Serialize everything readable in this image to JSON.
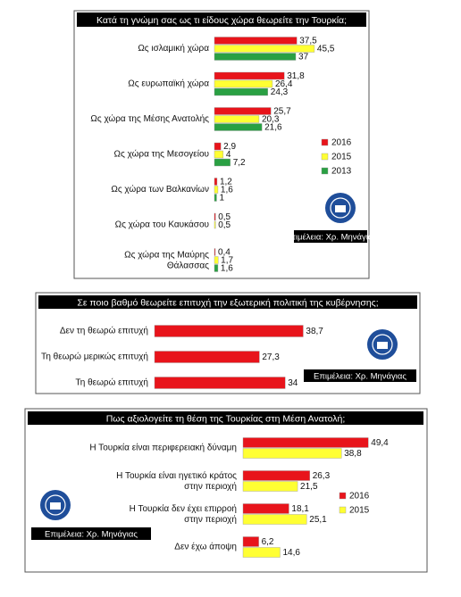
{
  "chart_data": [
    {
      "type": "bar",
      "orientation": "horizontal",
      "title": "Κατά τη γνώμη σας ως τι είδους χώρα θεωρείτε την Τουρκία;",
      "categories": [
        "Ως ισλαμική χώρα",
        "Ως ευρωπαϊκή χώρα",
        "Ως χώρα της Μέσης Ανατολής",
        "Ως χώρα της Μεσογείου",
        "Ως χώρα των Βαλκανίων",
        "Ως χώρα του Καυκάσου",
        "Ως χώρα της Μαύρης\nΘάλασσας"
      ],
      "series": [
        {
          "name": "2016",
          "color": "#e8141b",
          "values": [
            37.5,
            31.8,
            25.7,
            2.9,
            1.2,
            0.5,
            0.4
          ],
          "value_labels": [
            "37,5",
            "31,8",
            "25,7",
            "2,9",
            "1,2",
            "0,5",
            "0,4"
          ]
        },
        {
          "name": "2015",
          "color": "#ffff33",
          "values": [
            45.5,
            26.4,
            20.3,
            4,
            1.6,
            0.5,
            1.7
          ],
          "value_labels": [
            "45,5",
            "26,4",
            "20,3",
            "4",
            "1,6",
            "0,5",
            "1,7"
          ]
        },
        {
          "name": "2013",
          "color": "#2aa043",
          "values": [
            37,
            24.3,
            21.6,
            7.2,
            1,
            null,
            1.6
          ],
          "value_labels": [
            "37",
            "24,3",
            "21,6",
            "7,2",
            "1",
            null,
            "1,6"
          ]
        }
      ],
      "xlim": [
        0,
        50
      ],
      "legend": "right",
      "credit": "Επιμέλεια: Χρ. Μηνάγιας"
    },
    {
      "type": "bar",
      "orientation": "horizontal",
      "title": "Σε ποιο βαθμό θεωρείτε επιτυχή την εξωτερική πολιτική της κυβέρνησης;",
      "categories": [
        "Δεν τη θεωρώ επιτυχή",
        "Τη θεωρώ μερικώς επιτυχή",
        "Τη θεωρώ επιτυχή"
      ],
      "series": [
        {
          "color": "#e8141b",
          "values": [
            38.7,
            27.3,
            34
          ],
          "value_labels": [
            "38,7",
            "27,3",
            "34"
          ]
        }
      ],
      "xlim": [
        0,
        40
      ],
      "credit": "Επιμέλεια: Χρ. Μηνάγιας"
    },
    {
      "type": "bar",
      "orientation": "horizontal",
      "title": "Πως αξιολογείτε τη θέση της Τουρκίας στη Μέση Ανατολή;",
      "categories": [
        "Η Τουρκία είναι περιφερειακή δύναμη",
        "Η Τουρκία είναι ηγετικό κράτος\nστην περιοχή",
        "Η Τουρκία δεν έχει επιρροή\nστην περιοχή",
        "Δεν έχω άποψη"
      ],
      "series": [
        {
          "name": "2016",
          "color": "#e8141b",
          "values": [
            49.4,
            26.3,
            18.1,
            6.2
          ],
          "value_labels": [
            "49,4",
            "26,3",
            "18,1",
            "6,2"
          ]
        },
        {
          "name": "2015",
          "color": "#ffff33",
          "values": [
            38.8,
            21.5,
            25.1,
            14.6
          ],
          "value_labels": [
            "38,8",
            "21,5",
            "25,1",
            "14,6"
          ]
        }
      ],
      "xlim": [
        0,
        50
      ],
      "legend": "right",
      "credit": "Επιμέλεια: Χρ. Μηνάγιας"
    }
  ]
}
